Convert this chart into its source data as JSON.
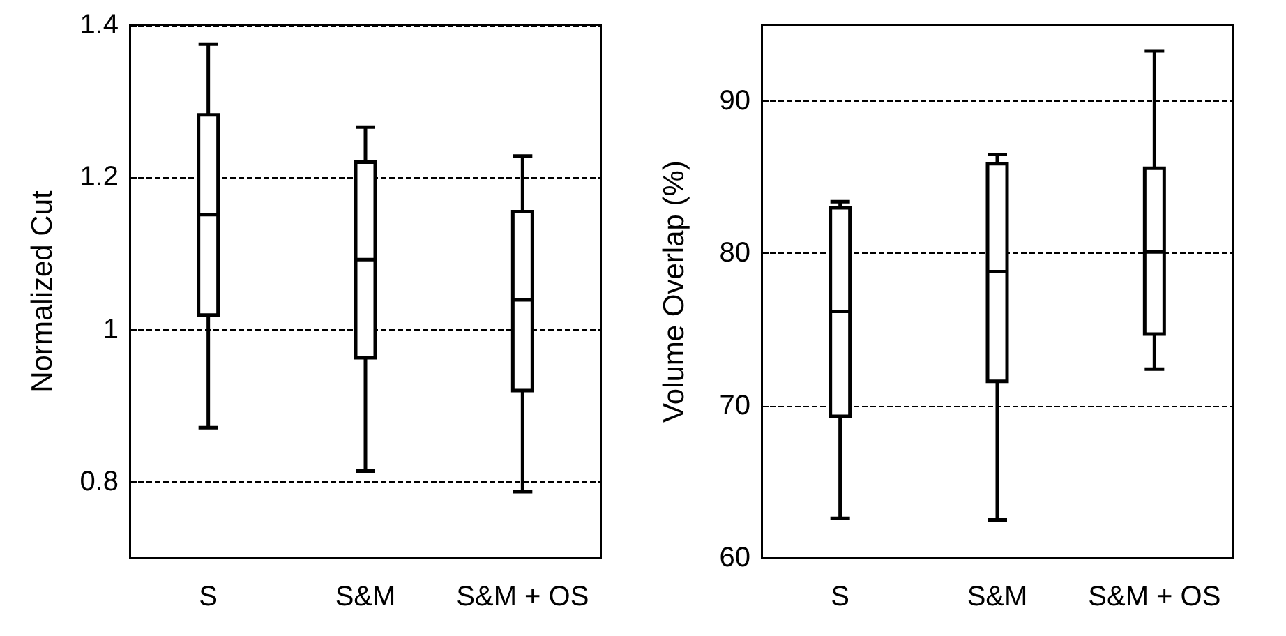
{
  "chart_data": [
    {
      "type": "box",
      "ylabel": "Normalized Cut",
      "categories": [
        "S",
        "S&M",
        "S&M + OS"
      ],
      "color": "#000000",
      "boxes": [
        {
          "low": 0.871,
          "q1": 1.019,
          "median": 1.151,
          "q3": 1.282,
          "high": 1.375
        },
        {
          "low": 0.814,
          "q1": 0.963,
          "median": 1.092,
          "q3": 1.22,
          "high": 1.266
        },
        {
          "low": 0.787,
          "q1": 0.92,
          "median": 1.039,
          "q3": 1.155,
          "high": 1.228
        }
      ],
      "ylim": [
        0.7,
        1.4
      ],
      "yticks": [
        0.8,
        1,
        1.2,
        1.4
      ],
      "grid": "y",
      "line_style": "dashed"
    },
    {
      "type": "box",
      "ylabel": "Volume Overlap (%)",
      "categories": [
        "S",
        "S&M",
        "S&M + OS"
      ],
      "color": "#000000",
      "boxes": [
        {
          "low": 62.6,
          "q1": 69.3,
          "median": 76.2,
          "q3": 83.0,
          "high": 83.4
        },
        {
          "low": 62.5,
          "q1": 71.6,
          "median": 78.8,
          "q3": 85.9,
          "high": 86.5
        },
        {
          "low": 72.4,
          "q1": 74.7,
          "median": 80.1,
          "q3": 85.6,
          "high": 93.3
        }
      ],
      "ylim": [
        60,
        95
      ],
      "yticks": [
        60,
        70,
        80,
        90
      ],
      "grid": "y",
      "line_style": "dashed"
    }
  ]
}
